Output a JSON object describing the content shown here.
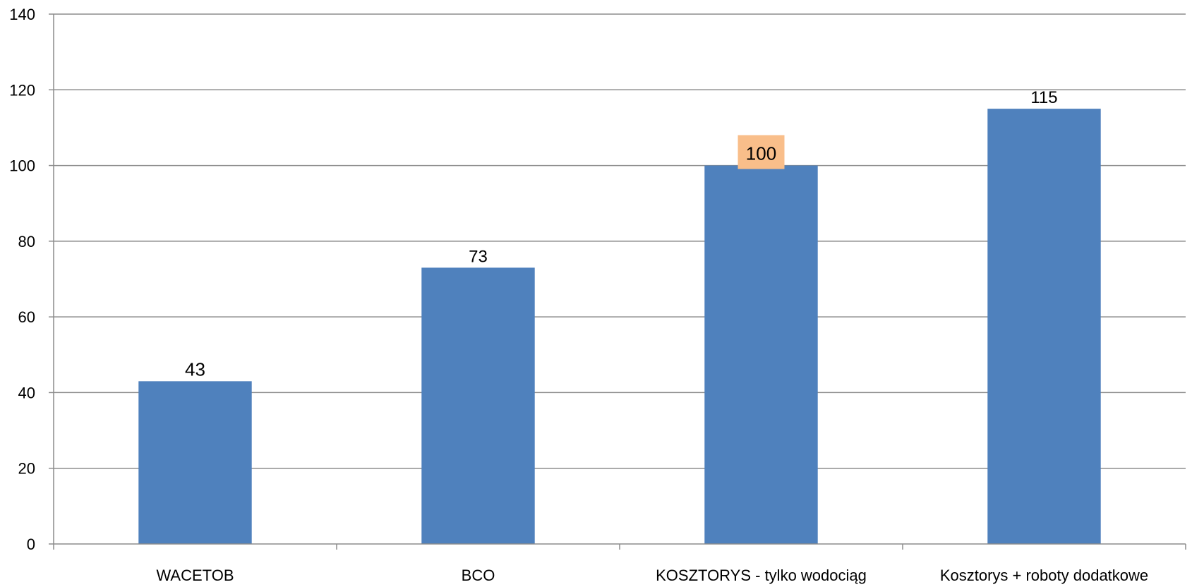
{
  "chart_data": {
    "type": "bar",
    "categories": [
      "WACETOB",
      "BCO",
      "KOSZTORYS - tylko wodociąg",
      "Kosztorys + roboty dodatkowe"
    ],
    "values": [
      43,
      73,
      100,
      115
    ],
    "data_labels": [
      "43",
      "73",
      "100",
      "115"
    ],
    "ylim": [
      0,
      140
    ],
    "y_ticks": [
      0,
      20,
      40,
      60,
      80,
      100,
      120,
      140
    ],
    "grid": true,
    "legend": "none",
    "colors": {
      "bar": "#4f81bd",
      "label_default": "#000000",
      "label_highlight_text": "#ff0000",
      "label_highlight_box": "#f9be8a"
    },
    "label_styles": [
      "red-text",
      "plain",
      "orange-box",
      "plain"
    ]
  }
}
